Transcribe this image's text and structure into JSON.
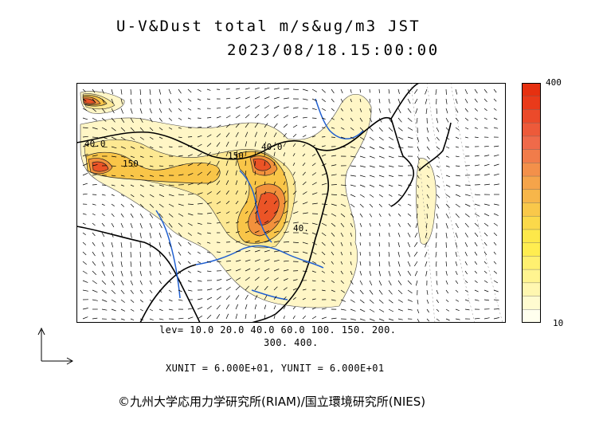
{
  "title_line1": "U-V&Dust total m/s&ug/m3 JST",
  "title_line2": "2023/08/18.15:00:00",
  "colorbar": {
    "max_label": "400",
    "min_label": "10",
    "colors": [
      "#ffffee",
      "#fffbd0",
      "#fff7b0",
      "#fff490",
      "#fff070",
      "#ffed50",
      "#fde84a",
      "#fbd94a",
      "#f9c84a",
      "#f7b64a",
      "#f5a44a",
      "#f3904a",
      "#f17c4a",
      "#ef6a4a",
      "#ed5a3a",
      "#eb4a2a",
      "#e93a1a",
      "#e63010"
    ]
  },
  "lev_line1": "lev= 10.0 20.0 40.0 60.0 100. 150. 200.",
  "lev_line2": "300. 400.",
  "units_line": "XUNIT = 6.000E+01, YUNIT = 6.000E+01",
  "credit": "©九州大学応用力学研究所(RIAM)/国立環境研究所(NIES)",
  "contour_labels": [
    "150",
    "40.0",
    "40.",
    "150",
    "40.0"
  ],
  "colors": {
    "level_10": "#fff7c2",
    "level_20": "#fde98a",
    "level_40": "#f8c84a",
    "level_100": "#f29a3e",
    "level_200": "#eb5a24",
    "river": "#1f5fd0",
    "land_line": "#000000"
  }
}
